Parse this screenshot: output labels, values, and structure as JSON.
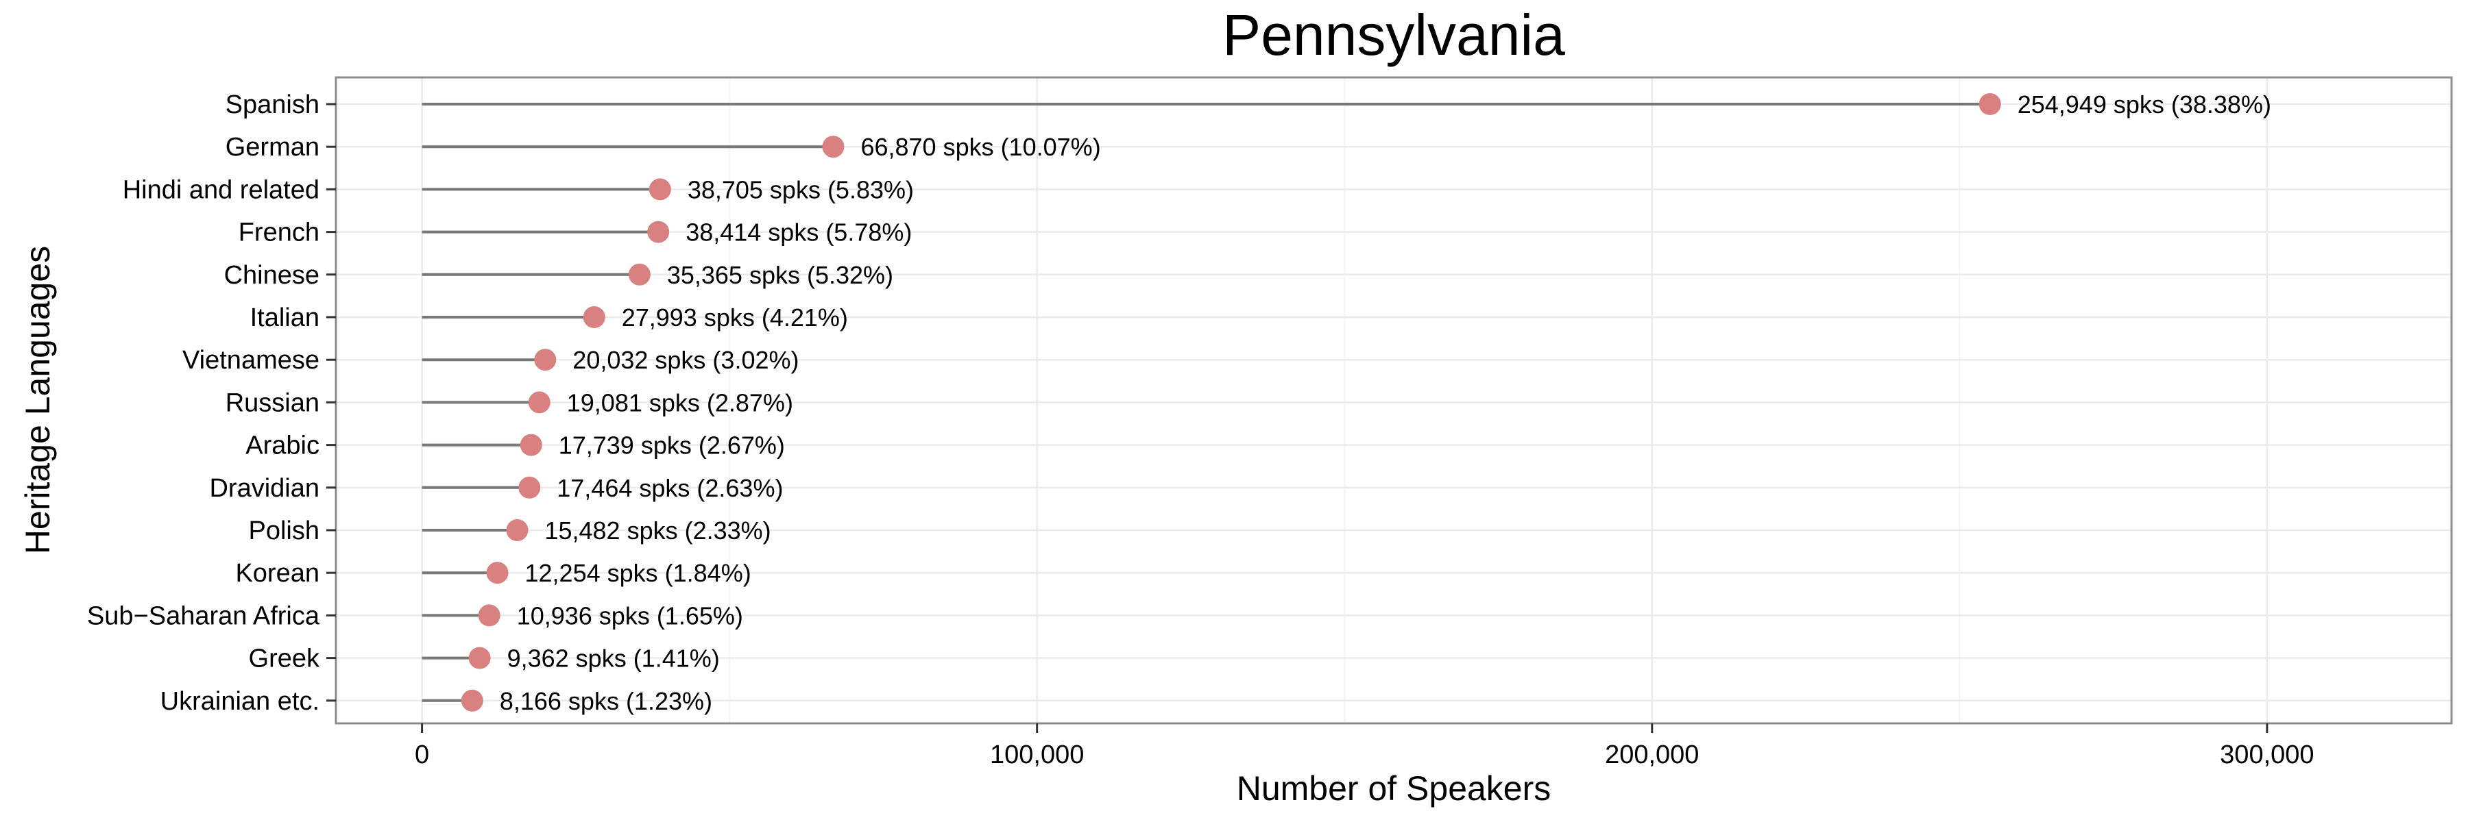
{
  "chart_data": {
    "type": "lollipop",
    "title": "Pennsylvania",
    "xlabel": "Number of Speakers",
    "ylabel": "Heritage Languages",
    "xlim": [
      -14000,
      330000
    ],
    "x_ticks": [
      0,
      100000,
      200000,
      300000
    ],
    "x_tick_labels": [
      "0",
      "100,000",
      "200,000",
      "300,000"
    ],
    "grid": true,
    "categories": [
      "Spanish",
      "German",
      "Hindi and related",
      "French",
      "Chinese",
      "Italian",
      "Vietnamese",
      "Russian",
      "Arabic",
      "Dravidian",
      "Polish",
      "Korean",
      "Sub−Saharan Africa",
      "Greek",
      "Ukrainian etc."
    ],
    "values": [
      254949,
      66870,
      38705,
      38414,
      35365,
      27993,
      20032,
      19081,
      17739,
      17464,
      15482,
      12254,
      10936,
      9362,
      8166
    ],
    "data_labels": [
      "254,949 spks (38.38%)",
      "66,870 spks (10.07%)",
      "38,705 spks (5.83%)",
      "38,414 spks (5.78%)",
      "35,365 spks (5.32%)",
      "27,993 spks (4.21%)",
      "20,032 spks (3.02%)",
      "19,081 spks (2.87%)",
      "17,739 spks (2.67%)",
      "17,464 spks (2.63%)",
      "15,482 spks (2.33%)",
      "12,254 spks (1.84%)",
      "10,936 spks (1.65%)",
      "9,362 spks (1.41%)",
      "8,166 spks (1.23%)"
    ],
    "colors": {
      "point": "#d98080",
      "stem": "#777777",
      "grid_major": "#ebebeb",
      "grid_minor": "#f4f4f4",
      "border": "#8c8c8c"
    }
  }
}
